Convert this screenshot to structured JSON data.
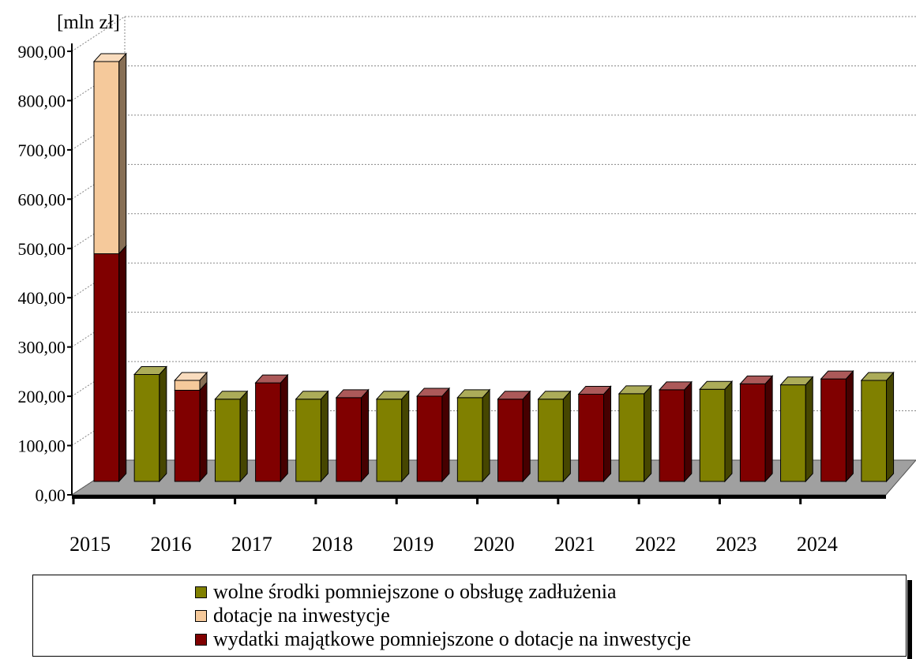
{
  "chart_data": {
    "type": "bar",
    "ylabel": "[mln zł]",
    "ylim": [
      0,
      900
    ],
    "yticks": [
      "0,00",
      "100,00",
      "200,00",
      "300,00",
      "400,00",
      "500,00",
      "600,00",
      "700,00",
      "800,00",
      "900,00"
    ],
    "year_labels": [
      "2015",
      "2016",
      "2017",
      "2018",
      "2019",
      "2020",
      "2021",
      "2022",
      "2023",
      "2024"
    ],
    "grid": true,
    "legend_position": "bottom",
    "series": [
      {
        "name": "wolne środki pomniejszone o obsługę zadłużenia",
        "color": "#808000",
        "key": "wolne"
      },
      {
        "name": "dotacje na inwestycje",
        "color": "#f5c99b",
        "key": "dotacje"
      },
      {
        "name": "wydatki majątkowe pomniejszone o dotacje na inwestycje",
        "color": "#800000",
        "key": "wydatki"
      }
    ],
    "bars": [
      {
        "year": "2015",
        "group": "expenditure",
        "wydatki": 462,
        "dotacje": 390
      },
      {
        "year": "2015",
        "group": "funds",
        "wolne": 217
      },
      {
        "year": "2016",
        "group": "expenditure",
        "wydatki": 185,
        "dotacje": 20
      },
      {
        "year": "2016",
        "group": "funds",
        "wolne": 167
      },
      {
        "year": "2017",
        "group": "expenditure",
        "wydatki": 200,
        "dotacje": 0
      },
      {
        "year": "2017",
        "group": "funds",
        "wolne": 167
      },
      {
        "year": "2018",
        "group": "expenditure",
        "wydatki": 170,
        "dotacje": 0
      },
      {
        "year": "2018",
        "group": "funds",
        "wolne": 167
      },
      {
        "year": "2019",
        "group": "expenditure",
        "wydatki": 173,
        "dotacje": 0
      },
      {
        "year": "2019",
        "group": "funds",
        "wolne": 170
      },
      {
        "year": "2020",
        "group": "expenditure",
        "wydatki": 167,
        "dotacje": 0
      },
      {
        "year": "2020",
        "group": "funds",
        "wolne": 167
      },
      {
        "year": "2021",
        "group": "expenditure",
        "wydatki": 177,
        "dotacje": 0
      },
      {
        "year": "2021",
        "group": "funds",
        "wolne": 178
      },
      {
        "year": "2022",
        "group": "expenditure",
        "wydatki": 186,
        "dotacje": 0
      },
      {
        "year": "2022",
        "group": "funds",
        "wolne": 187
      },
      {
        "year": "2023",
        "group": "expenditure",
        "wydatki": 198,
        "dotacje": 0
      },
      {
        "year": "2023",
        "group": "funds",
        "wolne": 196
      },
      {
        "year": "2024",
        "group": "expenditure",
        "wydatki": 208,
        "dotacje": 0
      },
      {
        "year": "2024",
        "group": "funds",
        "wolne": 205
      }
    ]
  }
}
